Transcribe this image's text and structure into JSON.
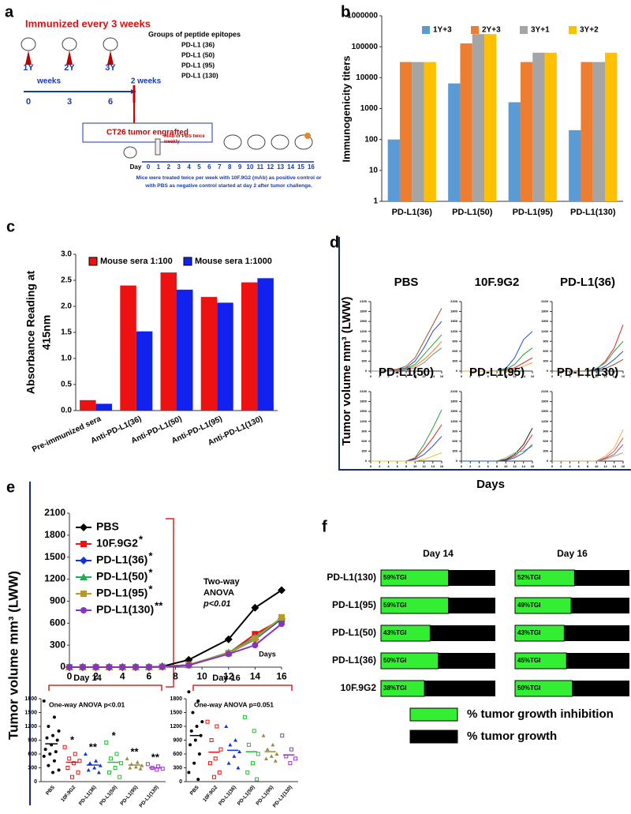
{
  "diagram": {
    "panel": "a",
    "schedule": "Immunized every 3 weeks",
    "groups_title": "Groups of peptide epitopes",
    "groups": [
      "PD-L1 (36)",
      "PD-L1 (50)",
      "PD-L1 (95)",
      "PD-L1 (130)"
    ],
    "immunizations": [
      "1Y",
      "2Y",
      "3Y"
    ],
    "weeks": [
      0,
      3,
      6
    ],
    "weeks_label": "weeks",
    "gap_label": "2 weeks",
    "engraft": "CT26 tumor engrafted",
    "treatment": "mAb or PBS twice weekly",
    "day_label": "Day",
    "days": [
      0,
      1,
      2,
      3,
      4,
      5,
      6,
      7,
      8,
      9,
      10,
      11,
      12,
      13,
      14,
      15,
      16
    ],
    "caption": [
      "Mice were treated twice per week with 10F.9G2 (mAb) as positive control or",
      "with PBS as negative control started at day 2 after tumor challenge."
    ]
  },
  "chart_data": [
    {
      "type": "bar",
      "panel": "b",
      "ylabel": "Immunogenicity titers",
      "log_y": true,
      "categories": [
        "PD-L1(36)",
        "PD-L1(50)",
        "PD-L1(95)",
        "PD-L1(130)"
      ],
      "series": [
        {
          "name": "1Y+3",
          "color": "#5b9bd5",
          "values": [
            100,
            6500,
            1600,
            200
          ]
        },
        {
          "name": "2Y+3",
          "color": "#ed7d31",
          "values": [
            32000,
            128000,
            32000,
            32000
          ]
        },
        {
          "name": "3Y+1",
          "color": "#a5a5a5",
          "values": [
            32000,
            256000,
            64000,
            32000
          ]
        },
        {
          "name": "3Y+2",
          "color": "#ffc000",
          "values": [
            32000,
            256000,
            64000,
            64000
          ]
        }
      ],
      "ylim": [
        1,
        1000000
      ],
      "yticks": [
        1,
        10,
        100,
        1000,
        10000,
        100000,
        1000000
      ]
    },
    {
      "type": "bar",
      "panel": "c",
      "ylabel": [
        "Absorbance Reading at",
        "415nm"
      ],
      "xtick_rotation": 25,
      "categories": [
        "Pre-immunized sera",
        "Anti-PD-L1(36)",
        "Anti-PD-L1(50)",
        "Anti-PD-L1(95)",
        "Anti-PD-L1(130)"
      ],
      "series": [
        {
          "name": "Mouse sera 1:100",
          "color": "#ee1111",
          "values": [
            0.2,
            2.4,
            2.65,
            2.18,
            2.46
          ]
        },
        {
          "name": "Mouse sera 1:1000",
          "color": "#1122ee",
          "values": [
            0.13,
            1.52,
            2.32,
            2.07,
            2.54
          ]
        }
      ],
      "ylim": [
        0,
        3
      ],
      "yticks": [
        {
          "value": 0,
          "label": "0.0"
        },
        0.5,
        {
          "value": 1,
          "label": "1.0"
        },
        1.5,
        {
          "value": 2,
          "label": "2.0"
        },
        2.5,
        {
          "value": 3,
          "label": "3.0"
        }
      ]
    },
    {
      "type": "multiples",
      "panel": "d",
      "ylabel": "Tumor volume mm³ (LWW)",
      "xlabel": "Days",
      "x": [
        0,
        2,
        4,
        6,
        8,
        10,
        12,
        14,
        16
      ],
      "xlim": [
        0,
        16
      ],
      "xticks": [
        0,
        2,
        4,
        6,
        8,
        10,
        12,
        14,
        16
      ],
      "ylim": [
        0,
        2100
      ],
      "yticks": [
        0,
        300,
        600,
        900,
        1200,
        1500,
        1800,
        2100
      ],
      "subplots": [
        {
          "title": "PBS",
          "series": [
            {
              "color": "#a0522d",
              "values": [
                0,
                0,
                20,
                60,
                150,
                400,
                900,
                1400,
                1900
              ]
            },
            {
              "color": "#1f4fd0",
              "values": [
                0,
                0,
                10,
                40,
                100,
                300,
                700,
                1200,
                1500
              ]
            },
            {
              "color": "#2e9e3e",
              "values": [
                0,
                0,
                0,
                20,
                80,
                200,
                500,
                800,
                1100
              ]
            },
            {
              "color": "#f08030",
              "values": [
                0,
                0,
                10,
                30,
                60,
                150,
                350,
                600,
                900
              ]
            },
            {
              "color": "#888888",
              "values": [
                0,
                0,
                0,
                10,
                40,
                100,
                250,
                500,
                700
              ]
            }
          ]
        },
        {
          "title": "10F.9G2",
          "series": [
            {
              "color": "#1f4fd0",
              "values": [
                0,
                0,
                0,
                0,
                10,
                80,
                400,
                950,
                1200
              ]
            },
            {
              "color": "#2e9e3e",
              "values": [
                0,
                0,
                0,
                0,
                0,
                50,
                200,
                500,
                700
              ]
            },
            {
              "color": "#dd2222",
              "values": [
                0,
                0,
                0,
                0,
                0,
                20,
                100,
                250,
                400
              ]
            },
            {
              "color": "#f0a030",
              "values": [
                0,
                0,
                0,
                0,
                0,
                0,
                50,
                150,
                250
              ]
            }
          ]
        },
        {
          "title": "PD-L1(36)",
          "series": [
            {
              "color": "#dd2222",
              "values": [
                0,
                0,
                0,
                0,
                0,
                50,
                300,
                700,
                1400
              ]
            },
            {
              "color": "#2e9e3e",
              "values": [
                0,
                0,
                0,
                0,
                10,
                80,
                250,
                600,
                900
              ]
            },
            {
              "color": "#1f4fd0",
              "values": [
                0,
                0,
                0,
                0,
                0,
                30,
                150,
                350,
                600
              ]
            },
            {
              "color": "#8b5a2b",
              "values": [
                0,
                0,
                0,
                0,
                0,
                10,
                80,
                200,
                350
              ]
            }
          ]
        },
        {
          "title": "PD-L1(50)",
          "series": [
            {
              "color": "#2e9e3e",
              "values": [
                0,
                0,
                0,
                0,
                0,
                100,
                500,
                1000,
                1550
              ]
            },
            {
              "color": "#dd2222",
              "values": [
                0,
                0,
                0,
                0,
                0,
                80,
                350,
                700,
                1100
              ]
            },
            {
              "color": "#1f4fd0",
              "values": [
                0,
                0,
                0,
                0,
                0,
                50,
                200,
                450,
                750
              ]
            },
            {
              "color": "#e8c020",
              "values": [
                0,
                0,
                0,
                0,
                0,
                0,
                50,
                150,
                250
              ]
            }
          ]
        },
        {
          "title": "PD-L1(95)",
          "series": [
            {
              "color": "#222222",
              "values": [
                0,
                0,
                0,
                0,
                0,
                50,
                200,
                500,
                1000
              ]
            },
            {
              "color": "#dd2222",
              "values": [
                0,
                0,
                0,
                0,
                0,
                30,
                150,
                400,
                800
              ]
            },
            {
              "color": "#7ac060",
              "values": [
                0,
                0,
                0,
                0,
                0,
                100,
                250,
                300,
                450
              ]
            },
            {
              "color": "#1f4fd0",
              "values": [
                0,
                0,
                0,
                0,
                0,
                20,
                100,
                250,
                500
              ]
            }
          ]
        },
        {
          "title": "PD-L1(130)",
          "series": [
            {
              "color": "#f0b040",
              "values": [
                0,
                0,
                0,
                0,
                0,
                0,
                150,
                400,
                950
              ]
            },
            {
              "color": "#e05050",
              "values": [
                0,
                0,
                0,
                0,
                0,
                0,
                100,
                300,
                700
              ]
            },
            {
              "color": "#9050b0",
              "values": [
                0,
                0,
                0,
                0,
                0,
                0,
                80,
                200,
                500
              ]
            },
            {
              "color": "#b0a070",
              "values": [
                0,
                0,
                0,
                0,
                0,
                0,
                50,
                150,
                250
              ]
            }
          ]
        }
      ]
    },
    {
      "type": "line",
      "panel": "e",
      "ylabel": "Tumor volume mm³ (LWW)",
      "xlabel": "Days",
      "annotation": [
        "Two-way",
        "ANOVA",
        "p<0.01"
      ],
      "x": [
        0,
        1,
        2,
        3,
        4,
        5,
        6,
        7,
        9,
        12,
        14,
        16
      ],
      "xlim": [
        0,
        16
      ],
      "xticks": [
        0,
        2,
        4,
        6,
        8,
        10,
        12,
        14,
        16
      ],
      "ylim": [
        0,
        2100
      ],
      "yticks": [
        0,
        300,
        600,
        900,
        1200,
        1500,
        1800,
        2100
      ],
      "series": [
        {
          "name": "PBS",
          "color": "#000000",
          "marker": "diamond",
          "values": [
            0,
            0,
            0,
            0,
            0,
            0,
            0,
            10,
            100,
            380,
            810,
            1050
          ]
        },
        {
          "name": "10F.9G2",
          "significance": "*",
          "color": "#ee1111",
          "marker": "square",
          "values": [
            0,
            0,
            0,
            0,
            0,
            0,
            0,
            5,
            30,
            190,
            450,
            650
          ]
        },
        {
          "name": "PD-L1(36)",
          "significance": "*",
          "color": "#1133dd",
          "marker": "diamond",
          "values": [
            0,
            0,
            0,
            0,
            0,
            0,
            0,
            5,
            30,
            190,
            380,
            660
          ]
        },
        {
          "name": "PD-L1(50)",
          "significance": "*",
          "color": "#22aa55",
          "marker": "triangle",
          "values": [
            0,
            0,
            0,
            0,
            0,
            0,
            0,
            5,
            30,
            200,
            410,
            670
          ]
        },
        {
          "name": "PD-L1(95)",
          "significance": "*",
          "color": "#b89a28",
          "marker": "square",
          "values": [
            0,
            0,
            0,
            0,
            0,
            0,
            0,
            5,
            30,
            190,
            390,
            680
          ]
        },
        {
          "name": "PD-L1(130)",
          "significance": "**",
          "color": "#8833bb",
          "marker": "circle",
          "values": [
            0,
            0,
            0,
            0,
            0,
            0,
            0,
            5,
            25,
            180,
            300,
            590
          ]
        }
      ]
    },
    {
      "type": "strip",
      "title": "Day 14",
      "annotation": "One-way ANOVA p<0.01",
      "categories": [
        "PBS",
        "10F.9G2",
        "PD-L1(36)",
        "PD-L1(50)",
        "PD-L1(95)",
        "PD-L1(130)"
      ],
      "colors": [
        "#000000",
        "#ee1111",
        "#1133dd",
        "#22bb33",
        "#9a8a4a",
        "#9933cc"
      ],
      "significance": [
        null,
        "*",
        "**",
        "*",
        "**",
        "**"
      ],
      "points": [
        [
          1750,
          1400,
          1200,
          1100,
          1000,
          950,
          900,
          800,
          700,
          650,
          600,
          550,
          450,
          350,
          250,
          200
        ],
        [
          750,
          600,
          500,
          450,
          400,
          300,
          200,
          100
        ],
        [
          600,
          450,
          400,
          350,
          300,
          250,
          200
        ],
        [
          850,
          600,
          500,
          400,
          300,
          200,
          100
        ],
        [
          500,
          420,
          380,
          350,
          320,
          300,
          280
        ],
        [
          380,
          330,
          300,
          280,
          260
        ]
      ],
      "mean": [
        820,
        420,
        360,
        420,
        360,
        300
      ],
      "ylim": [
        0,
        1800
      ],
      "yticks": [
        0,
        300,
        600,
        900,
        1200,
        1500,
        1800
      ]
    },
    {
      "type": "strip",
      "title": "Day 16",
      "annotation": "One-way ANOVA p=0.051",
      "categories": [
        "PBS",
        "10F.9G2",
        "PD-L1(36)",
        "PD-L1(50)",
        "PD-L1(95)",
        "PD-L1(130)"
      ],
      "colors": [
        "#000000",
        "#ee1111",
        "#1133dd",
        "#22bb33",
        "#9a8a4a",
        "#9933cc"
      ],
      "points": [
        [
          1950,
          1750,
          1500,
          1300,
          1200,
          1100,
          1000,
          900,
          800,
          600,
          400,
          200,
          50
        ],
        [
          1300,
          1200,
          900,
          700,
          500,
          400,
          200,
          100
        ],
        [
          1200,
          900,
          800,
          650,
          550,
          400,
          300
        ],
        [
          1400,
          1100,
          800,
          600,
          400,
          200,
          50
        ],
        [
          1000,
          800,
          700,
          600,
          550,
          500,
          450
        ],
        [
          1000,
          700,
          550,
          500,
          400
        ]
      ],
      "mean": [
        1000,
        640,
        680,
        650,
        650,
        580
      ],
      "ylim": [
        0,
        1800
      ],
      "yticks": [
        0,
        300,
        600,
        900,
        1200,
        1500,
        1800
      ]
    },
    {
      "type": "bar",
      "panel": "f",
      "orientation": "horizontal",
      "categories": [
        "PD-L1(130)",
        "PD-L1(95)",
        "PD-L1(50)",
        "PD-L1(36)",
        "10F.9G2"
      ],
      "series": [
        {
          "name": "Day 14",
          "color": "#33ee33",
          "values": [
            59,
            59,
            43,
            50,
            38
          ],
          "value_labels": [
            "59%TGI",
            "59%TGI",
            "43%TGI",
            "50%TGI",
            "38%TGI"
          ]
        },
        {
          "name": "Day 16",
          "color": "#33ee33",
          "values": [
            52,
            49,
            43,
            45,
            50
          ],
          "value_labels": [
            "52%TGI",
            "49%TGI",
            "43%TGI",
            "45%TGI",
            "50%TGI"
          ]
        }
      ],
      "xlim": [
        0,
        100
      ],
      "legend": [
        {
          "label": "% tumor growth inhibition",
          "color": "#33ee33"
        },
        {
          "label": "% tumor growth",
          "color": "#000000"
        }
      ]
    }
  ]
}
